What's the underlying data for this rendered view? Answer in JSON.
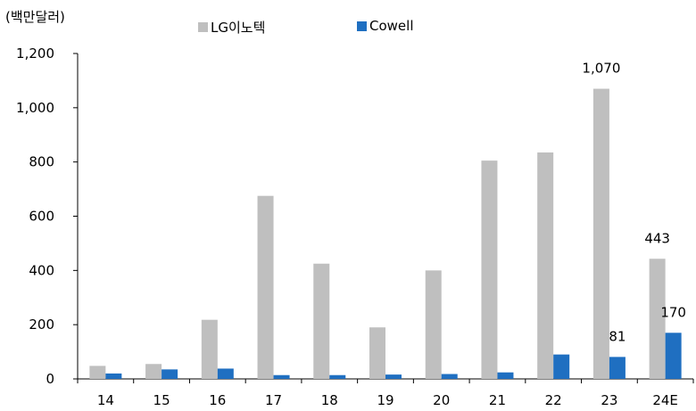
{
  "unit_label": "(백만달러)",
  "colors": {
    "lg": "#bfbfbf",
    "cowell": "#1f6fc1",
    "axis": "#000000"
  },
  "chart_data": {
    "type": "bar",
    "categories": [
      "14",
      "15",
      "16",
      "17",
      "18",
      "19",
      "20",
      "21",
      "22",
      "23",
      "24E"
    ],
    "series": [
      {
        "name": "LG이노텍",
        "values": [
          48,
          55,
          218,
          675,
          425,
          190,
          400,
          805,
          835,
          1070,
          443
        ]
      },
      {
        "name": "Cowell",
        "values": [
          20,
          35,
          38,
          14,
          14,
          16,
          18,
          24,
          90,
          81,
          170
        ]
      }
    ],
    "ylim": [
      0,
      1200
    ],
    "yticks": [
      0,
      200,
      400,
      600,
      800,
      1000,
      1200
    ],
    "ytick_labels": [
      "0",
      "200",
      "400",
      "600",
      "800",
      "1,000",
      "1,200"
    ],
    "data_labels": [
      {
        "series": 0,
        "index": 9,
        "text": "1,070"
      },
      {
        "series": 1,
        "index": 9,
        "text": "81"
      },
      {
        "series": 0,
        "index": 10,
        "text": "443"
      },
      {
        "series": 1,
        "index": 10,
        "text": "170"
      }
    ],
    "legend": "top",
    "grid": false
  }
}
